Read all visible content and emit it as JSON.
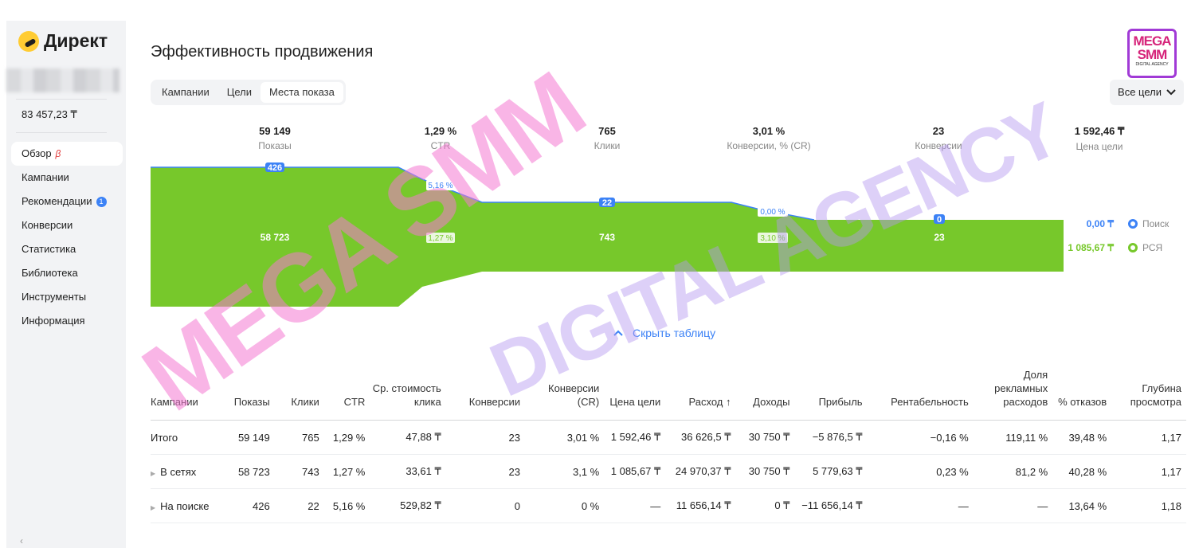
{
  "sidebar": {
    "brand": "Директ",
    "balance": "83 457,23 ₸",
    "items": [
      {
        "label": "Обзор",
        "beta": "β",
        "active": true
      },
      {
        "label": "Кампании"
      },
      {
        "label": "Рекомендации",
        "badge": "1"
      },
      {
        "label": "Конверсии"
      },
      {
        "label": "Статистика"
      },
      {
        "label": "Библиотека"
      },
      {
        "label": "Инструменты"
      },
      {
        "label": "Информация"
      }
    ]
  },
  "header": {
    "title": "Эффективность продвижения",
    "tabs": [
      "Кампании",
      "Цели",
      "Места показа"
    ],
    "active_tab": "Места показа",
    "goals_select": "Все цели"
  },
  "watermark": {
    "logo_top": "MEGA",
    "logo_bottom": "SMM",
    "logo_sub": "DIGITAL AGENCY",
    "text_pink": "MEGA SMM",
    "text_purple": "DIGITAL AGENCY"
  },
  "funnel": {
    "metrics": [
      {
        "value": "59 149",
        "label": "Показы"
      },
      {
        "value": "1,29 %",
        "label": "CTR"
      },
      {
        "value": "765",
        "label": "Клики"
      },
      {
        "value": "3,01 %",
        "label": "Конверсии, % (CR)"
      },
      {
        "value": "23",
        "label": "Конверсии"
      },
      {
        "value": "1 592,46 ₸",
        "label": "Цена цели"
      }
    ],
    "search": {
      "shows": "426",
      "ctr": "5,16 %",
      "clicks": "22",
      "cr": "0,00 %",
      "conversions": "0",
      "goal_cost": "0,00 ₸",
      "legend": "Поиск",
      "color": "#3c82f6"
    },
    "networks": {
      "shows": "58 723",
      "ctr": "1,27 %",
      "clicks": "743",
      "cr": "3,10 %",
      "conversions": "23",
      "goal_cost": "1 085,67 ₸",
      "legend": "РСЯ",
      "color": "#77c82b"
    },
    "hide_table": "Скрыть таблицу"
  },
  "table": {
    "headers": [
      "Кампании",
      "Показы",
      "Клики",
      "CTR",
      "Ср. стоимость клика",
      "Конверсии",
      "Конверсии (CR)",
      "Цена цели",
      "Расход ↑",
      "Доходы",
      "Прибыль",
      "Рентабельность",
      "Доля рекламных расходов",
      "% отказов",
      "Глубина просмотра"
    ],
    "rows": [
      {
        "name": "Итого",
        "expandable": false,
        "cells": [
          "59 149",
          "765",
          "1,29 %",
          "47,88 ₸",
          "23",
          "3,01 %",
          "1 592,46 ₸",
          "36 626,5 ₸",
          "30 750 ₸",
          "−5 876,5 ₸",
          "−0,16 %",
          "119,11 %",
          "39,48 %",
          "1,17"
        ]
      },
      {
        "name": "В сетях",
        "expandable": true,
        "cells": [
          "58 723",
          "743",
          "1,27 %",
          "33,61 ₸",
          "23",
          "3,1 %",
          "1 085,67 ₸",
          "24 970,37 ₸",
          "30 750 ₸",
          "5 779,63 ₸",
          "0,23 %",
          "81,2 %",
          "40,28 %",
          "1,17"
        ]
      },
      {
        "name": "На поиске",
        "expandable": true,
        "cells": [
          "426",
          "22",
          "5,16 %",
          "529,82 ₸",
          "0",
          "0 %",
          "—",
          "11 656,14 ₸",
          "0 ₸",
          "−11 656,14 ₸",
          "—",
          "—",
          "13,64 %",
          "1,18"
        ]
      }
    ]
  }
}
